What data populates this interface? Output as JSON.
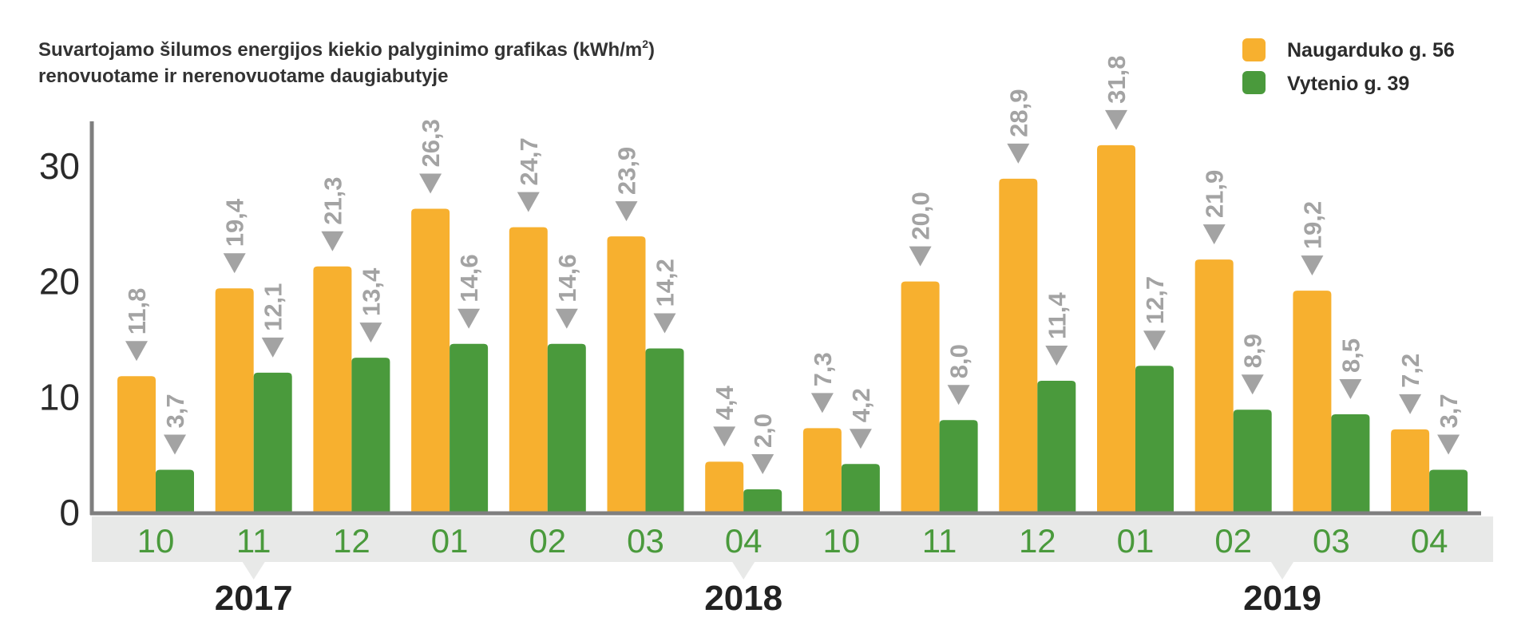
{
  "chart_data": {
    "type": "bar",
    "title": "Suvartojamo šilumos energijos kiekio palyginimo grafikas (kWh/m",
    "title_sup": "2",
    "title_close": ")",
    "subtitle": "renovuotame ir nerenovuotame daugiabutyje",
    "categories": [
      "10",
      "11",
      "12",
      "01",
      "02",
      "03",
      "04",
      "10",
      "11",
      "12",
      "01",
      "02",
      "03",
      "04"
    ],
    "years": [
      {
        "label": "2017",
        "from": 0,
        "to": 2
      },
      {
        "label": "2018",
        "from": 3,
        "to": 9
      },
      {
        "label": "2019",
        "from": 10,
        "to": 13
      }
    ],
    "series": [
      {
        "name": "Naugarduko g. 56",
        "color": "#F7B02F",
        "values": [
          11.8,
          19.4,
          21.3,
          26.3,
          24.7,
          23.9,
          4.4,
          7.3,
          20.0,
          28.9,
          31.8,
          21.9,
          19.2,
          7.2
        ],
        "labels": [
          "11,8",
          "19,4",
          "21,3",
          "26,3",
          "24,7",
          "23,9",
          "4,4",
          "7,3",
          "20,0",
          "28,9",
          "31,8",
          "21,9",
          "19,2",
          "7,2"
        ]
      },
      {
        "name": "Vytenio g. 39",
        "color": "#4A9A3C",
        "values": [
          3.7,
          12.1,
          13.4,
          14.6,
          14.6,
          14.2,
          2.0,
          4.2,
          8.0,
          11.4,
          12.7,
          8.9,
          8.5,
          3.7
        ],
        "labels": [
          "3,7",
          "12,1",
          "13,4",
          "14,6",
          "14,6",
          "14,2",
          "2,0",
          "4,2",
          "8,0",
          "11,4",
          "12,7",
          "8,9",
          "8,5",
          "3,7"
        ]
      }
    ],
    "yticks": [
      "0",
      "10",
      "20",
      "30"
    ],
    "ylim": [
      0,
      33
    ],
    "legend_position": "top-right",
    "grid": false,
    "colors": {
      "axis": "#7f7f7f",
      "category_band": "#E8E9E8",
      "category_text": "#4A9A3C",
      "data_label": "#A3A3A3"
    }
  }
}
